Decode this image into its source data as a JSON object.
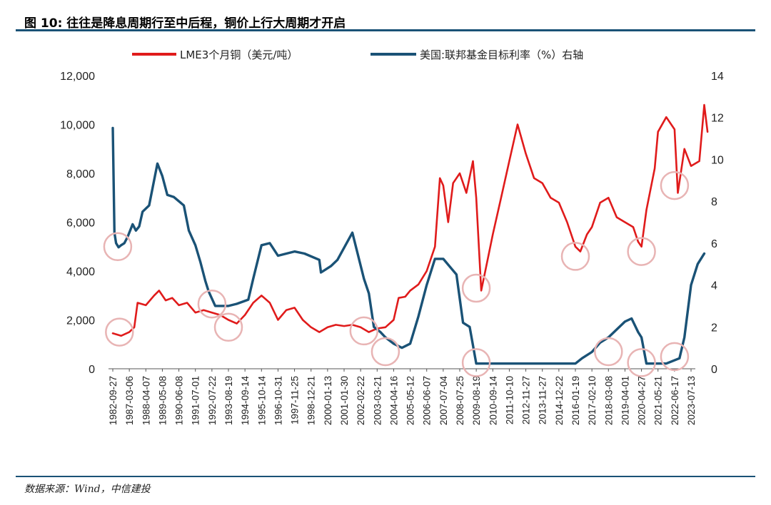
{
  "header": {
    "title": "图 10: 往往是降息周期行至中后程，铜价上行大周期才开启"
  },
  "footer": {
    "source": "数据来源：Wind，中信建投"
  },
  "colors": {
    "copper": "#e01b1b",
    "rate": "#1a5276",
    "circle": "#e8b4b4",
    "rule": "#1a5276"
  },
  "chart_data": {
    "type": "line",
    "title": "图 10: 往往是降息周期行至中后程，铜价上行大周期才开启",
    "legend_position": "top",
    "grid": false,
    "x_labels": [
      "1982-09-27",
      "1987-03-06",
      "1988-04-07",
      "1989-05-08",
      "1990-06-08",
      "1991-07-01",
      "1992-07-22",
      "1993-08-19",
      "1994-09-14",
      "1995-10-14",
      "1996-10-31",
      "1997-11-25",
      "1998-12-21",
      "2000-01-13",
      "2001-01-30",
      "2002-02-22",
      "2003-03-21",
      "2004-04-16",
      "2005-05-12",
      "2006-06-07",
      "2007-07-04",
      "2008-07-25",
      "2009-08-19",
      "2010-09-14",
      "2011-10-10",
      "2012-11-27",
      "2013-11-27",
      "2014-12-22",
      "2016-01-19",
      "2017-02-10",
      "2018-03-08",
      "2019-04-01",
      "2020-04-27",
      "2021-05-21",
      "2022-06-17",
      "2023-07-13"
    ],
    "ylim_left": [
      0,
      12000
    ],
    "ylim_right": [
      0,
      14
    ],
    "y_ticks_left": [
      "0",
      "2,000",
      "4,000",
      "6,000",
      "8,000",
      "10,000",
      "12,000"
    ],
    "y_ticks_right": [
      "0",
      "2",
      "4",
      "6",
      "8",
      "10",
      "12",
      "14"
    ],
    "series": [
      {
        "name": "LME3个月铜（美元/吨）",
        "axis": "left",
        "points": [
          [
            0,
            1450
          ],
          [
            0.5,
            1350
          ],
          [
            1,
            1500
          ],
          [
            1.3,
            1700
          ],
          [
            1.5,
            2700
          ],
          [
            2,
            2600
          ],
          [
            2.5,
            3000
          ],
          [
            2.8,
            3200
          ],
          [
            3.2,
            2800
          ],
          [
            3.6,
            2900
          ],
          [
            4,
            2600
          ],
          [
            4.5,
            2700
          ],
          [
            5,
            2300
          ],
          [
            5.5,
            2400
          ],
          [
            6,
            2300
          ],
          [
            6.5,
            2200
          ],
          [
            7,
            2000
          ],
          [
            7.5,
            1850
          ],
          [
            8,
            2200
          ],
          [
            8.5,
            2700
          ],
          [
            9,
            3000
          ],
          [
            9.5,
            2700
          ],
          [
            10,
            2000
          ],
          [
            10.5,
            2400
          ],
          [
            11,
            2500
          ],
          [
            11.5,
            2000
          ],
          [
            12,
            1700
          ],
          [
            12.5,
            1500
          ],
          [
            13,
            1700
          ],
          [
            13.5,
            1800
          ],
          [
            14,
            1750
          ],
          [
            14.5,
            1800
          ],
          [
            15,
            1700
          ],
          [
            15.5,
            1500
          ],
          [
            16,
            1650
          ],
          [
            16.5,
            1700
          ],
          [
            17,
            2000
          ],
          [
            17.3,
            2900
          ],
          [
            17.7,
            2950
          ],
          [
            18,
            3200
          ],
          [
            18.5,
            3450
          ],
          [
            19,
            4000
          ],
          [
            19.5,
            5000
          ],
          [
            19.8,
            7800
          ],
          [
            20,
            7500
          ],
          [
            20.3,
            6000
          ],
          [
            20.6,
            7600
          ],
          [
            21,
            8000
          ],
          [
            21.4,
            7200
          ],
          [
            21.8,
            8500
          ],
          [
            22,
            7000
          ],
          [
            22.3,
            3200
          ],
          [
            22.7,
            4500
          ],
          [
            23,
            5500
          ],
          [
            23.5,
            7000
          ],
          [
            24,
            8500
          ],
          [
            24.5,
            10000
          ],
          [
            25,
            8800
          ],
          [
            25.5,
            7800
          ],
          [
            26,
            7600
          ],
          [
            26.5,
            7000
          ],
          [
            27,
            6800
          ],
          [
            27.5,
            6000
          ],
          [
            28,
            5000
          ],
          [
            28.3,
            4800
          ],
          [
            28.7,
            5500
          ],
          [
            29,
            5800
          ],
          [
            29.5,
            6800
          ],
          [
            30,
            7000
          ],
          [
            30.5,
            6200
          ],
          [
            31,
            6000
          ],
          [
            31.5,
            5800
          ],
          [
            31.8,
            5200
          ],
          [
            32,
            5000
          ],
          [
            32.3,
            6500
          ],
          [
            32.8,
            8200
          ],
          [
            33,
            9700
          ],
          [
            33.5,
            10300
          ],
          [
            34,
            9800
          ],
          [
            34.2,
            7200
          ],
          [
            34.6,
            9000
          ],
          [
            35,
            8300
          ],
          [
            35.5,
            8500
          ],
          [
            35.8,
            10800
          ],
          [
            36,
            9700
          ]
        ]
      },
      {
        "name": "美国:联邦基金目标利率（%）右轴",
        "axis": "right",
        "points": [
          [
            0,
            11.5
          ],
          [
            0.1,
            6.5
          ],
          [
            0.2,
            6
          ],
          [
            0.35,
            5.8
          ],
          [
            0.5,
            5.9
          ],
          [
            0.7,
            6
          ],
          [
            0.9,
            6.3
          ],
          [
            1.2,
            6.9
          ],
          [
            1.4,
            6.6
          ],
          [
            1.6,
            6.8
          ],
          [
            1.8,
            7.5
          ],
          [
            2.2,
            7.8
          ],
          [
            2.7,
            9.8
          ],
          [
            3,
            9.2
          ],
          [
            3.3,
            8.3
          ],
          [
            3.7,
            8.2
          ],
          [
            4.3,
            7.8
          ],
          [
            4.6,
            6.6
          ],
          [
            5,
            5.9
          ],
          [
            5.3,
            5.1
          ],
          [
            5.6,
            4.2
          ],
          [
            5.8,
            3.7
          ],
          [
            6.2,
            3.0
          ],
          [
            7,
            3.0
          ],
          [
            7.5,
            3.1
          ],
          [
            8.2,
            3.3
          ],
          [
            8.5,
            4.3
          ],
          [
            9,
            5.9
          ],
          [
            9.5,
            6.0
          ],
          [
            10,
            5.4
          ],
          [
            11,
            5.6
          ],
          [
            11.6,
            5.5
          ],
          [
            12.5,
            5.2
          ],
          [
            12.6,
            4.6
          ],
          [
            13.2,
            4.9
          ],
          [
            13.6,
            5.2
          ],
          [
            14.5,
            6.5
          ],
          [
            15.2,
            4.3
          ],
          [
            15.5,
            3.6
          ],
          [
            15.8,
            2.0
          ],
          [
            16.2,
            1.75
          ],
          [
            16.5,
            1.5
          ],
          [
            17,
            1.2
          ],
          [
            17.5,
            1.0
          ],
          [
            18,
            1.2
          ],
          [
            18.5,
            2.5
          ],
          [
            19,
            4.0
          ],
          [
            19.5,
            5.25
          ],
          [
            20,
            5.25
          ],
          [
            20.8,
            4.5
          ],
          [
            21.2,
            2.2
          ],
          [
            21.6,
            2.0
          ],
          [
            22,
            0.25
          ],
          [
            28,
            0.25
          ],
          [
            28.4,
            0.5
          ],
          [
            29,
            0.8
          ],
          [
            29.5,
            1.25
          ],
          [
            30,
            1.5
          ],
          [
            31,
            2.25
          ],
          [
            31.4,
            2.4
          ],
          [
            31.8,
            1.75
          ],
          [
            32,
            1.5
          ],
          [
            32.3,
            0.25
          ],
          [
            33.5,
            0.25
          ],
          [
            34.3,
            0.5
          ],
          [
            34.6,
            1.5
          ],
          [
            35,
            4.0
          ],
          [
            35.4,
            5.0
          ],
          [
            35.8,
            5.5
          ]
        ]
      }
    ],
    "annotations": {
      "type": "circle",
      "items": [
        [
          0.3,
          5000
        ],
        [
          0.4,
          1500
        ],
        [
          6,
          2650
        ],
        [
          7,
          1700
        ],
        [
          15.2,
          1550
        ],
        [
          16.5,
          700
        ],
        [
          22,
          3300
        ],
        [
          22,
          250
        ],
        [
          28,
          4600
        ],
        [
          30,
          700
        ],
        [
          32,
          4800
        ],
        [
          32,
          250
        ],
        [
          34,
          7500
        ],
        [
          34,
          500
        ]
      ]
    }
  }
}
